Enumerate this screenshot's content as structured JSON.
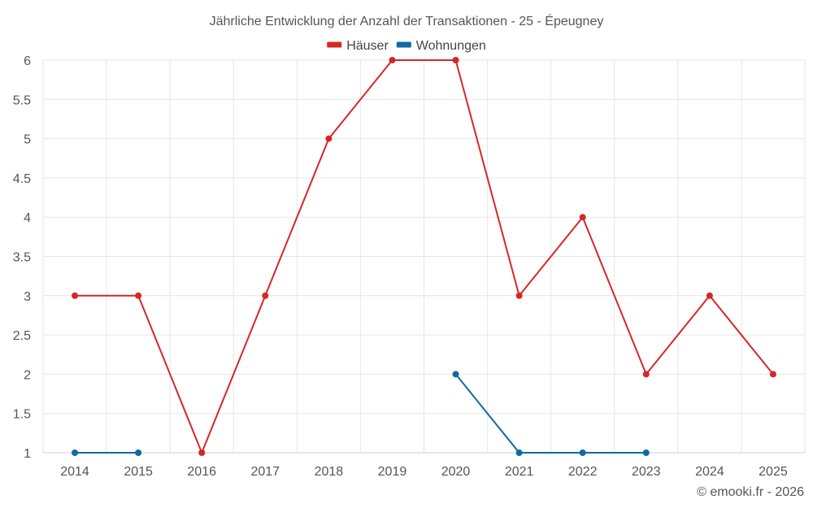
{
  "chart_data": {
    "type": "line",
    "title": "Jährliche Entwicklung der Anzahl der Transaktionen - 25 - Épeugney",
    "x": [
      "2014",
      "2015",
      "2016",
      "2017",
      "2018",
      "2019",
      "2020",
      "2021",
      "2022",
      "2023",
      "2024",
      "2025"
    ],
    "ylim": [
      1,
      6
    ],
    "yticks": [
      "1",
      "1.5",
      "2",
      "2.5",
      "3",
      "3.5",
      "4",
      "4.5",
      "5",
      "5.5",
      "6"
    ],
    "grid": true,
    "legend_position": "top-center",
    "series": [
      {
        "name": "Häuser",
        "color": "#d62728",
        "values": [
          3,
          3,
          1,
          3,
          5,
          6,
          6,
          3,
          4,
          2,
          3,
          2
        ]
      },
      {
        "name": "Wohnungen",
        "color": "#0f6aa1",
        "values": [
          1,
          1,
          null,
          null,
          null,
          null,
          2,
          1,
          1,
          1,
          null,
          null
        ]
      }
    ]
  },
  "credit": "© emooki.fr - 2026"
}
